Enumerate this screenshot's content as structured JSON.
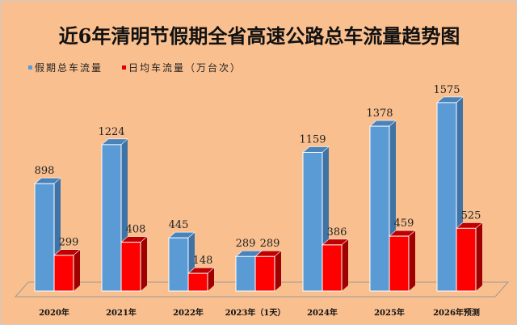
{
  "chart_data": {
    "type": "bar",
    "title": "近6年清明节假期全省高速公路总车流量趋势图",
    "categories": [
      "2020年",
      "2021年",
      "2022年",
      "2023年（1天）",
      "2024年",
      "2025年",
      "2026年预测"
    ],
    "series": [
      {
        "name": "假期总车流量",
        "color": "#5b9bd5",
        "values": [
          898,
          1224,
          445,
          289,
          1159,
          1378,
          1575
        ]
      },
      {
        "name": "日均车流量（万台次）",
        "color": "#ff0000",
        "values": [
          299,
          408,
          148,
          289,
          386,
          459,
          525
        ]
      }
    ],
    "xlabel": "",
    "ylabel": "",
    "grid": false,
    "legend": "top-left"
  }
}
